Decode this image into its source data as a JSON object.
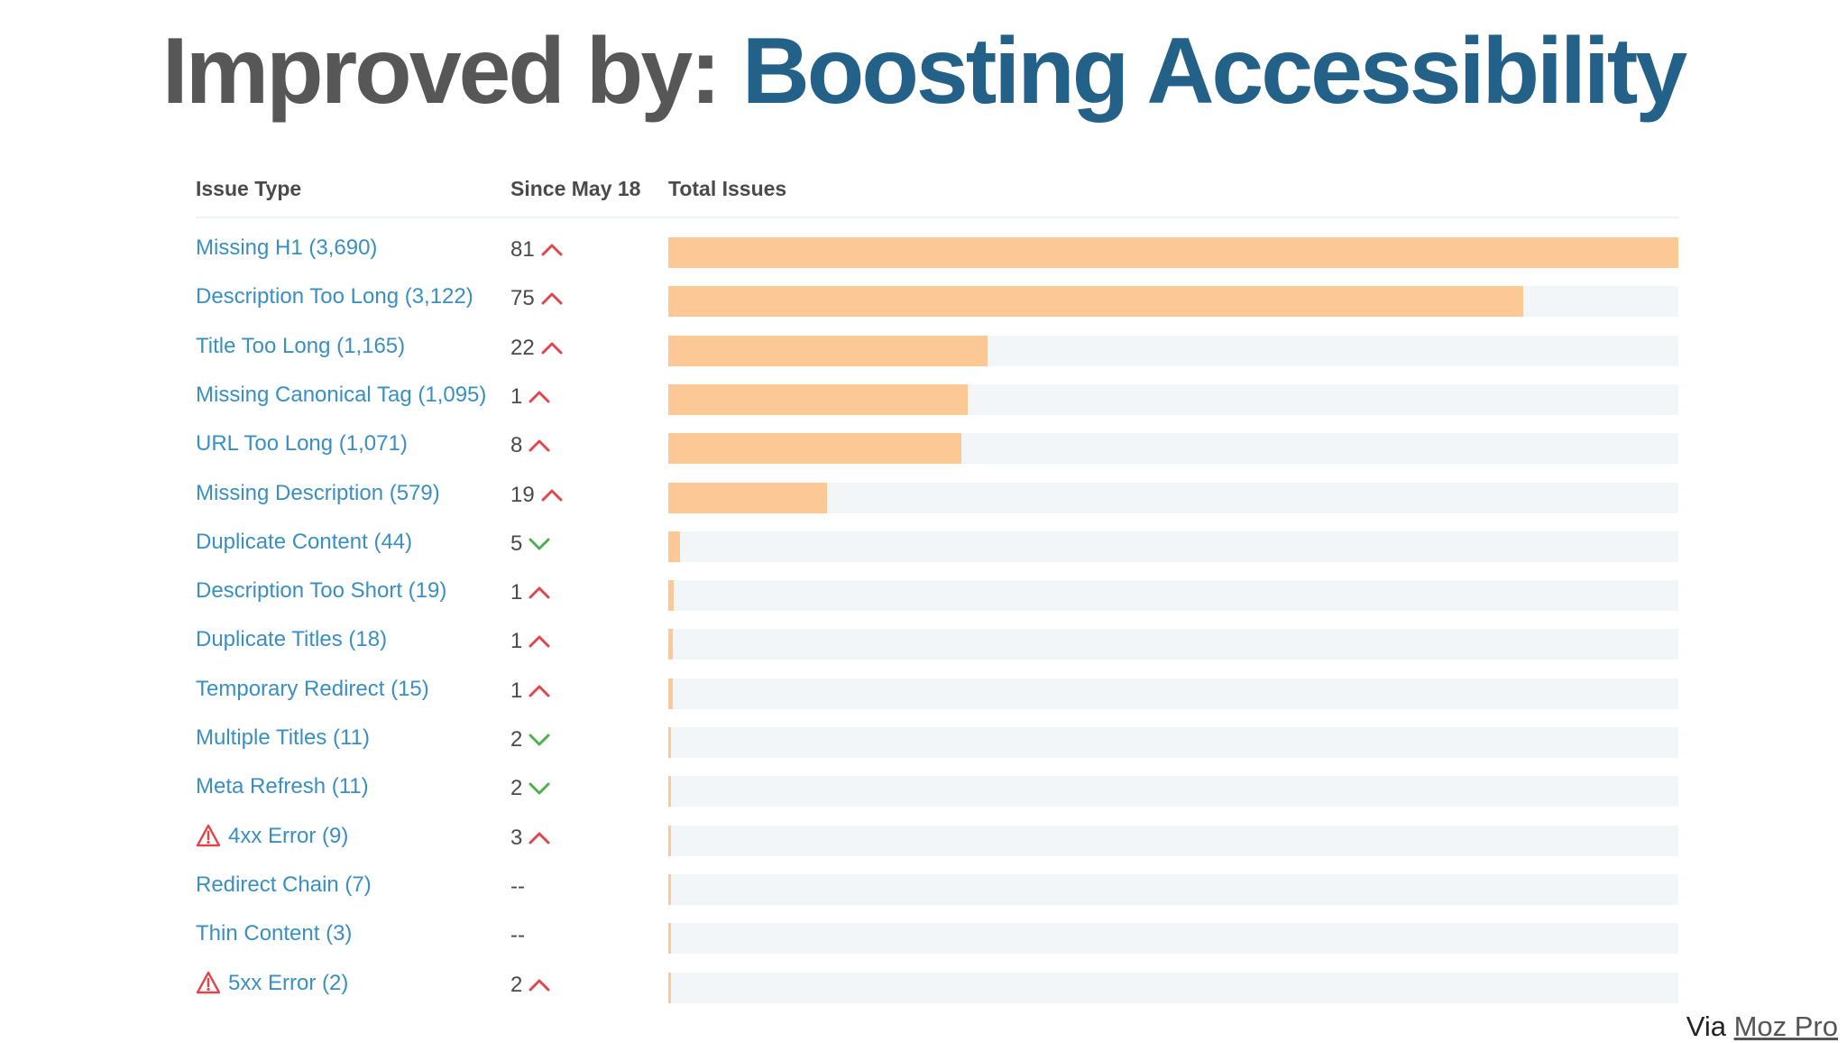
{
  "title": {
    "prefix": "Improved by:",
    "highlight": "Boosting Accessibility"
  },
  "chart_data": {
    "type": "bar",
    "orientation": "horizontal",
    "columns": [
      "Issue Type",
      "Since May 18",
      "Total Issues"
    ],
    "grid": false,
    "rows": [
      {
        "label": "Missing H1 (3,690)",
        "total": 3690,
        "change": "81",
        "direction": "up",
        "warning": false
      },
      {
        "label": "Description Too Long (3,122)",
        "total": 3122,
        "change": "75",
        "direction": "up",
        "warning": false
      },
      {
        "label": "Title Too Long (1,165)",
        "total": 1165,
        "change": "22",
        "direction": "up",
        "warning": false
      },
      {
        "label": "Missing Canonical Tag (1,095)",
        "total": 1095,
        "change": "1",
        "direction": "up",
        "warning": false
      },
      {
        "label": "URL Too Long (1,071)",
        "total": 1071,
        "change": "8",
        "direction": "up",
        "warning": false
      },
      {
        "label": "Missing Description (579)",
        "total": 579,
        "change": "19",
        "direction": "up",
        "warning": false
      },
      {
        "label": "Duplicate Content (44)",
        "total": 44,
        "change": "5",
        "direction": "down",
        "warning": false
      },
      {
        "label": "Description Too Short (19)",
        "total": 19,
        "change": "1",
        "direction": "up",
        "warning": false
      },
      {
        "label": "Duplicate Titles (18)",
        "total": 18,
        "change": "1",
        "direction": "up",
        "warning": false
      },
      {
        "label": "Temporary Redirect (15)",
        "total": 15,
        "change": "1",
        "direction": "up",
        "warning": false
      },
      {
        "label": "Multiple Titles (11)",
        "total": 11,
        "change": "2",
        "direction": "down",
        "warning": false
      },
      {
        "label": "Meta Refresh (11)",
        "total": 11,
        "change": "2",
        "direction": "down",
        "warning": false
      },
      {
        "label": "4xx Error (9)",
        "total": 9,
        "change": "3",
        "direction": "up",
        "warning": true
      },
      {
        "label": "Redirect Chain (7)",
        "total": 7,
        "change": "--",
        "direction": "none",
        "warning": false
      },
      {
        "label": "Thin Content (3)",
        "total": 3,
        "change": "--",
        "direction": "none",
        "warning": false
      },
      {
        "label": "5xx Error (2)",
        "total": 2,
        "change": "2",
        "direction": "up",
        "warning": true
      }
    ],
    "xlim": [
      0,
      3690
    ]
  },
  "colors": {
    "bar": "#fbc896",
    "track": "#f2f6f8",
    "up": "#e0474c",
    "down": "#4cb050",
    "link": "#3a8fc1",
    "warning": "#e0474c"
  },
  "footer": {
    "prefix": "Via",
    "link_label": "Moz Pro"
  }
}
